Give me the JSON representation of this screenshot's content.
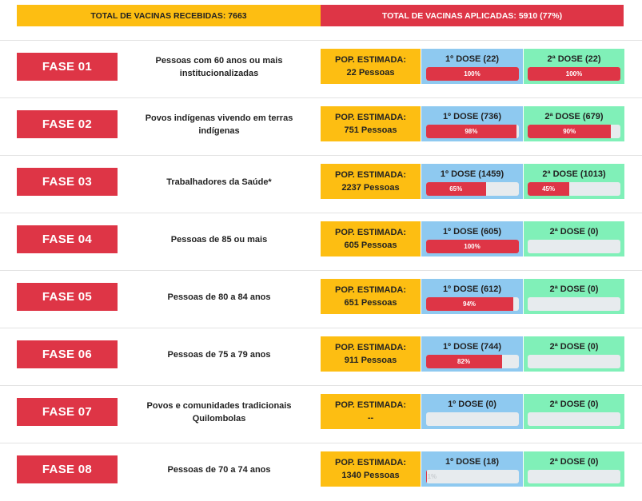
{
  "summary": {
    "received": "TOTAL DE VACINAS RECEBIDAS: 7663",
    "applied": "TOTAL DE VACINAS APLICADAS: 5910 (77%)"
  },
  "colors": {
    "red": "#de3546",
    "yellow": "#fdbe12",
    "blue": "#8ec9f0",
    "green": "#80f0b8",
    "track": "#e7ebee"
  },
  "phases": [
    {
      "label": "FASE 01",
      "description": "Pessoas com 60 anos ou mais institucionalizadas",
      "pop_label": "POP. ESTIMADA:",
      "pop_value": "22 Pessoas",
      "dose1_label": "1º DOSE (22)",
      "dose1_pct": 100,
      "dose1_text": "100%",
      "dose2_label": "2ª DOSE (22)",
      "dose2_pct": 100,
      "dose2_text": "100%"
    },
    {
      "label": "FASE 02",
      "description": "Povos indígenas vivendo em terras indígenas",
      "pop_label": "POP. ESTIMADA:",
      "pop_value": "751 Pessoas",
      "dose1_label": "1º DOSE (736)",
      "dose1_pct": 98,
      "dose1_text": "98%",
      "dose2_label": "2ª DOSE (679)",
      "dose2_pct": 90,
      "dose2_text": "90%"
    },
    {
      "label": "FASE 03",
      "description": "Trabalhadores da Saúde*",
      "pop_label": "POP. ESTIMADA:",
      "pop_value": "2237 Pessoas",
      "dose1_label": "1º DOSE (1459)",
      "dose1_pct": 65,
      "dose1_text": "65%",
      "dose2_label": "2ª DOSE (1013)",
      "dose2_pct": 45,
      "dose2_text": "45%"
    },
    {
      "label": "FASE 04",
      "description": "Pessoas de 85 ou mais",
      "pop_label": "POP. ESTIMADA:",
      "pop_value": "605 Pessoas",
      "dose1_label": "1º DOSE (605)",
      "dose1_pct": 100,
      "dose1_text": "100%",
      "dose2_label": "2ª DOSE (0)",
      "dose2_pct": 0,
      "dose2_text": ""
    },
    {
      "label": "FASE 05",
      "description": "Pessoas de 80 a 84 anos",
      "pop_label": "POP. ESTIMADA:",
      "pop_value": "651 Pessoas",
      "dose1_label": "1º DOSE (612)",
      "dose1_pct": 94,
      "dose1_text": "94%",
      "dose2_label": "2ª DOSE (0)",
      "dose2_pct": 0,
      "dose2_text": ""
    },
    {
      "label": "FASE 06",
      "description": "Pessoas de 75 a 79 anos",
      "pop_label": "POP. ESTIMADA:",
      "pop_value": "911 Pessoas",
      "dose1_label": "1º DOSE (744)",
      "dose1_pct": 82,
      "dose1_text": "82%",
      "dose2_label": "2ª DOSE (0)",
      "dose2_pct": 0,
      "dose2_text": ""
    },
    {
      "label": "FASE 07",
      "description": "Povos e comunidades tradicionais Quilombolas",
      "pop_label": "POP. ESTIMADA:",
      "pop_value": "--",
      "dose1_label": "1º DOSE (0)",
      "dose1_pct": 0,
      "dose1_text": "",
      "dose2_label": "2ª DOSE (0)",
      "dose2_pct": 0,
      "dose2_text": ""
    },
    {
      "label": "FASE 08",
      "description": "Pessoas de 70 a 74 anos",
      "pop_label": "POP. ESTIMADA:",
      "pop_value": "1340 Pessoas",
      "dose1_label": "1º DOSE (18)",
      "dose1_pct": 1,
      "dose1_text": "1%",
      "dose2_label": "2ª DOSE (0)",
      "dose2_pct": 0,
      "dose2_text": ""
    }
  ]
}
